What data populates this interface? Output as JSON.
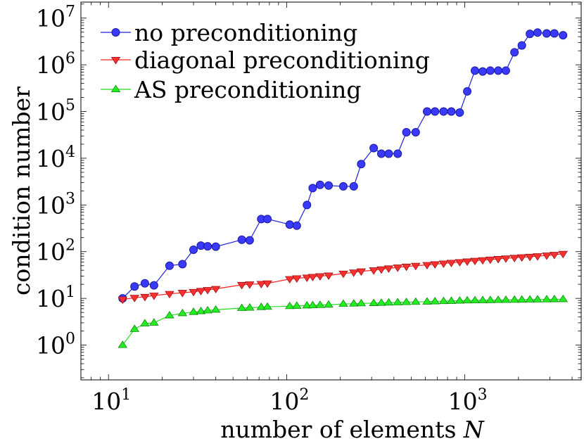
{
  "chart_data": {
    "type": "line",
    "xscale": "log",
    "yscale": "log",
    "xlim": [
      7,
      4500
    ],
    "ylim": [
      0.18,
      22000000
    ],
    "xticks": [
      10,
      100,
      1000
    ],
    "xtick_labels": [
      {
        "base": "10",
        "exp": "1"
      },
      {
        "base": "10",
        "exp": "2"
      },
      {
        "base": "10",
        "exp": "3"
      }
    ],
    "yticks": [
      1,
      10,
      100,
      1000,
      10000,
      100000,
      1000000,
      10000000
    ],
    "ytick_labels": [
      {
        "base": "10",
        "exp": "0"
      },
      {
        "base": "10",
        "exp": "1"
      },
      {
        "base": "10",
        "exp": "2"
      },
      {
        "base": "10",
        "exp": "3"
      },
      {
        "base": "10",
        "exp": "4"
      },
      {
        "base": "10",
        "exp": "5"
      },
      {
        "base": "10",
        "exp": "6"
      },
      {
        "base": "10",
        "exp": "7"
      }
    ],
    "xlabel": {
      "text": "number of elements ",
      "var": "N"
    },
    "ylabel": "condition number",
    "legend_position": "top-left",
    "grid": false,
    "series": [
      {
        "name": "no preconditioning",
        "color": "#3a3aff",
        "edge": "#1a1aa0",
        "line": "#2222dd",
        "marker": "circle",
        "x": [
          12,
          14,
          16,
          18,
          22,
          26,
          30,
          33,
          36,
          40,
          56,
          62,
          72,
          78,
          104,
          114,
          130,
          140,
          154,
          172,
          208,
          238,
          262,
          308,
          340,
          374,
          420,
          470,
          530,
          614,
          680,
          760,
          840,
          936,
          1032,
          1140,
          1260,
          1390,
          1540,
          1700,
          1900,
          2090,
          2320,
          2560,
          2880,
          3180,
          3560
        ],
        "y": [
          10,
          18,
          21,
          19,
          50,
          54,
          110,
          135,
          130,
          128,
          180,
          175,
          500,
          500,
          380,
          360,
          1000,
          2300,
          2700,
          2600,
          2500,
          2500,
          7500,
          16500,
          12500,
          12500,
          12500,
          36000,
          36000,
          100000,
          100000,
          100000,
          100000,
          95000,
          270000,
          750000,
          720000,
          750000,
          750000,
          750000,
          1850000,
          2600000,
          4600000,
          4900000,
          4700000,
          4700000,
          4300000
        ]
      },
      {
        "name": "diagonal preconditioning",
        "color": "#ff3030",
        "edge": "#a01010",
        "line": "#ff2020",
        "marker": "triangle-down",
        "x": [
          12,
          14,
          16,
          18,
          22,
          26,
          30,
          33,
          36,
          40,
          56,
          62,
          72,
          78,
          104,
          114,
          130,
          140,
          154,
          172,
          208,
          238,
          262,
          308,
          340,
          374,
          420,
          470,
          530,
          614,
          680,
          760,
          840,
          936,
          1032,
          1140,
          1260,
          1390,
          1540,
          1700,
          1900,
          2090,
          2320,
          2560,
          2880,
          3180,
          3560
        ],
        "y": [
          9.5,
          10.3,
          10.8,
          11.5,
          12.5,
          13.2,
          13.8,
          14.5,
          15.2,
          16,
          19.5,
          20,
          20.5,
          21,
          26,
          27,
          28,
          29,
          30,
          31,
          34,
          36,
          38,
          40,
          42,
          44,
          46,
          48,
          50,
          52,
          54,
          56,
          58,
          60,
          62,
          64,
          66,
          68,
          70,
          72,
          74,
          76,
          78,
          80,
          83,
          86,
          90
        ]
      },
      {
        "name": "AS preconditioning",
        "color": "#22ee22",
        "edge": "#118811",
        "line": "#22dd22",
        "marker": "triangle-up",
        "x": [
          12,
          14,
          16,
          18,
          22,
          26,
          30,
          33,
          36,
          40,
          56,
          62,
          72,
          78,
          104,
          114,
          130,
          140,
          154,
          172,
          208,
          238,
          262,
          308,
          340,
          374,
          420,
          470,
          530,
          614,
          680,
          760,
          840,
          936,
          1032,
          1140,
          1260,
          1390,
          1540,
          1700,
          1900,
          2090,
          2320,
          2560,
          2880,
          3180,
          3560
        ],
        "y": [
          1,
          2.2,
          2.9,
          3.0,
          4.3,
          4.8,
          5.1,
          5.3,
          5.5,
          5.7,
          6.2,
          6.3,
          6.5,
          6.6,
          6.8,
          6.9,
          7.0,
          7.1,
          7.2,
          7.3,
          7.6,
          7.7,
          7.8,
          7.9,
          8.0,
          8.1,
          8.2,
          8.3,
          8.4,
          8.5,
          8.6,
          8.7,
          8.8,
          8.9,
          9.0,
          9.05,
          9.1,
          9.15,
          9.2,
          9.25,
          9.3,
          9.35,
          9.4,
          9.45,
          9.5,
          9.55,
          9.6
        ]
      }
    ]
  }
}
